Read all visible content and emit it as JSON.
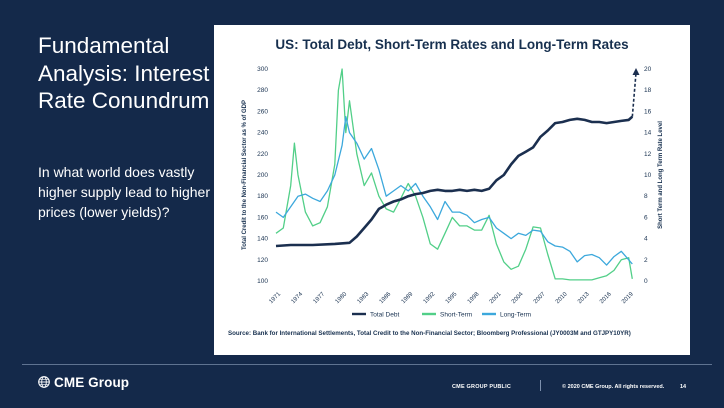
{
  "slide": {
    "title": "Fundamental Analysis: Interest Rate Conundrum",
    "body": "In what world does vastly higher supply lead to higher prices (lower yields)?"
  },
  "footer": {
    "logo_text": "CME Group",
    "classification": "CME GROUP PUBLIC",
    "copyright": "© 2020 CME Group. All rights reserved.",
    "page_number": "14"
  },
  "colors": {
    "background": "#14294a",
    "total_debt": "#1b2f4f",
    "short_term": "#52cf88",
    "long_term": "#3ca8dc",
    "title_text": "#17304f"
  },
  "chart_data": {
    "type": "line",
    "title": "US: Total Debt, Short-Term Rates and Long-Term Rates",
    "ylabel_left": "Total Credit to the Non-Financial Sector as % of GDP",
    "ylabel_right": "Short Term and Long Term Rate Level",
    "ylim_left": [
      100,
      300
    ],
    "ylim_right": [
      0,
      20
    ],
    "left_ticks": [
      "100",
      "120",
      "140",
      "160",
      "180",
      "200",
      "220",
      "240",
      "260",
      "280",
      "300"
    ],
    "right_ticks": [
      "0",
      "2",
      "4",
      "6",
      "8",
      "10",
      "12",
      "14",
      "16",
      "18",
      "20"
    ],
    "x_ticks": [
      "1971",
      "1974",
      "1977",
      "1980",
      "1983",
      "1986",
      "1989",
      "1992",
      "1995",
      "1998",
      "2001",
      "2004",
      "2007",
      "2010",
      "2013",
      "2016",
      "2019"
    ],
    "xlim": [
      1971,
      2020
    ],
    "legend": [
      "Total Debt",
      "Short-Term",
      "Long-Term"
    ],
    "source": "Source: Bank for International Settlements, Total Credit to the Non-Financial Sector; Bloomberg Professional (JY0003M and GTJPY10YR)",
    "series": [
      {
        "name": "Total Debt",
        "axis": "left",
        "color": "#1b2f4f",
        "x": [
          1971,
          1973,
          1976,
          1979,
          1981,
          1982,
          1983,
          1984,
          1985,
          1986,
          1987,
          1988,
          1989,
          1990,
          1991,
          1992,
          1993,
          1994,
          1995,
          1996,
          1997,
          1998,
          1999,
          2000,
          2001,
          2002,
          2003,
          2004,
          2005,
          2006,
          2007,
          2008,
          2009,
          2010,
          2011,
          2012,
          2013,
          2014,
          2015,
          2016,
          2017,
          2018,
          2019,
          2019.5
        ],
        "values": [
          133,
          134,
          134,
          135,
          136,
          142,
          150,
          158,
          168,
          172,
          175,
          177,
          180,
          182,
          183,
          185,
          186,
          185,
          185,
          186,
          185,
          186,
          185,
          187,
          195,
          200,
          210,
          218,
          222,
          226,
          236,
          242,
          249,
          250,
          252,
          253,
          252,
          250,
          250,
          249,
          250,
          251,
          252,
          255
        ],
        "projection": {
          "x": [
            2019.5,
            2020
          ],
          "values": [
            255,
            300
          ]
        }
      },
      {
        "name": "Short-Term",
        "axis": "right",
        "color": "#52cf88",
        "x": [
          1971,
          1972,
          1973,
          1973.5,
          1974,
          1975,
          1976,
          1977,
          1978,
          1979,
          1979.5,
          1980,
          1980.5,
          1981,
          1982,
          1983,
          1984,
          1985,
          1986,
          1987,
          1988,
          1989,
          1990,
          1991,
          1992,
          1993,
          1994,
          1995,
          1996,
          1997,
          1998,
          1999,
          2000,
          2001,
          2002,
          2003,
          2004,
          2005,
          2006,
          2007,
          2008,
          2009,
          2010,
          2011,
          2012,
          2013,
          2014,
          2015,
          2016,
          2017,
          2018,
          2019,
          2019.5
        ],
        "values": [
          4.5,
          5.0,
          9.0,
          13.0,
          10.0,
          6.5,
          5.2,
          5.5,
          7.0,
          11.0,
          18.0,
          20.0,
          14.0,
          17.0,
          12.0,
          9.0,
          10.2,
          8.0,
          6.8,
          6.5,
          7.8,
          9.2,
          8.0,
          6.0,
          3.5,
          3.0,
          4.5,
          6.0,
          5.2,
          5.2,
          4.8,
          4.8,
          6.2,
          3.5,
          1.8,
          1.1,
          1.4,
          3.0,
          5.1,
          5.0,
          2.5,
          0.2,
          0.2,
          0.1,
          0.1,
          0.1,
          0.1,
          0.3,
          0.5,
          1.0,
          2.0,
          2.2,
          0.2
        ]
      },
      {
        "name": "Long-Term",
        "axis": "right",
        "color": "#3ca8dc",
        "x": [
          1971,
          1972,
          1973,
          1974,
          1975,
          1976,
          1977,
          1978,
          1979,
          1980,
          1980.5,
          1981,
          1982,
          1983,
          1984,
          1985,
          1986,
          1987,
          1988,
          1989,
          1990,
          1991,
          1992,
          1993,
          1994,
          1995,
          1996,
          1997,
          1998,
          1999,
          2000,
          2001,
          2002,
          2003,
          2004,
          2005,
          2006,
          2007,
          2008,
          2009,
          2010,
          2011,
          2012,
          2013,
          2014,
          2015,
          2016,
          2017,
          2018,
          2019,
          2019.5
        ],
        "values": [
          6.5,
          6.0,
          7.0,
          8.0,
          8.2,
          7.8,
          7.5,
          8.5,
          10.0,
          12.8,
          15.5,
          14.0,
          13.0,
          11.5,
          12.5,
          10.5,
          8.0,
          8.5,
          9.0,
          8.5,
          9.2,
          8.0,
          7.0,
          5.8,
          7.5,
          6.5,
          6.5,
          6.2,
          5.5,
          5.8,
          6.0,
          5.0,
          4.5,
          4.0,
          4.5,
          4.3,
          4.8,
          4.7,
          3.7,
          3.3,
          3.2,
          2.8,
          1.8,
          2.4,
          2.5,
          2.2,
          1.5,
          2.3,
          2.8,
          2.0,
          1.6
        ]
      }
    ]
  }
}
